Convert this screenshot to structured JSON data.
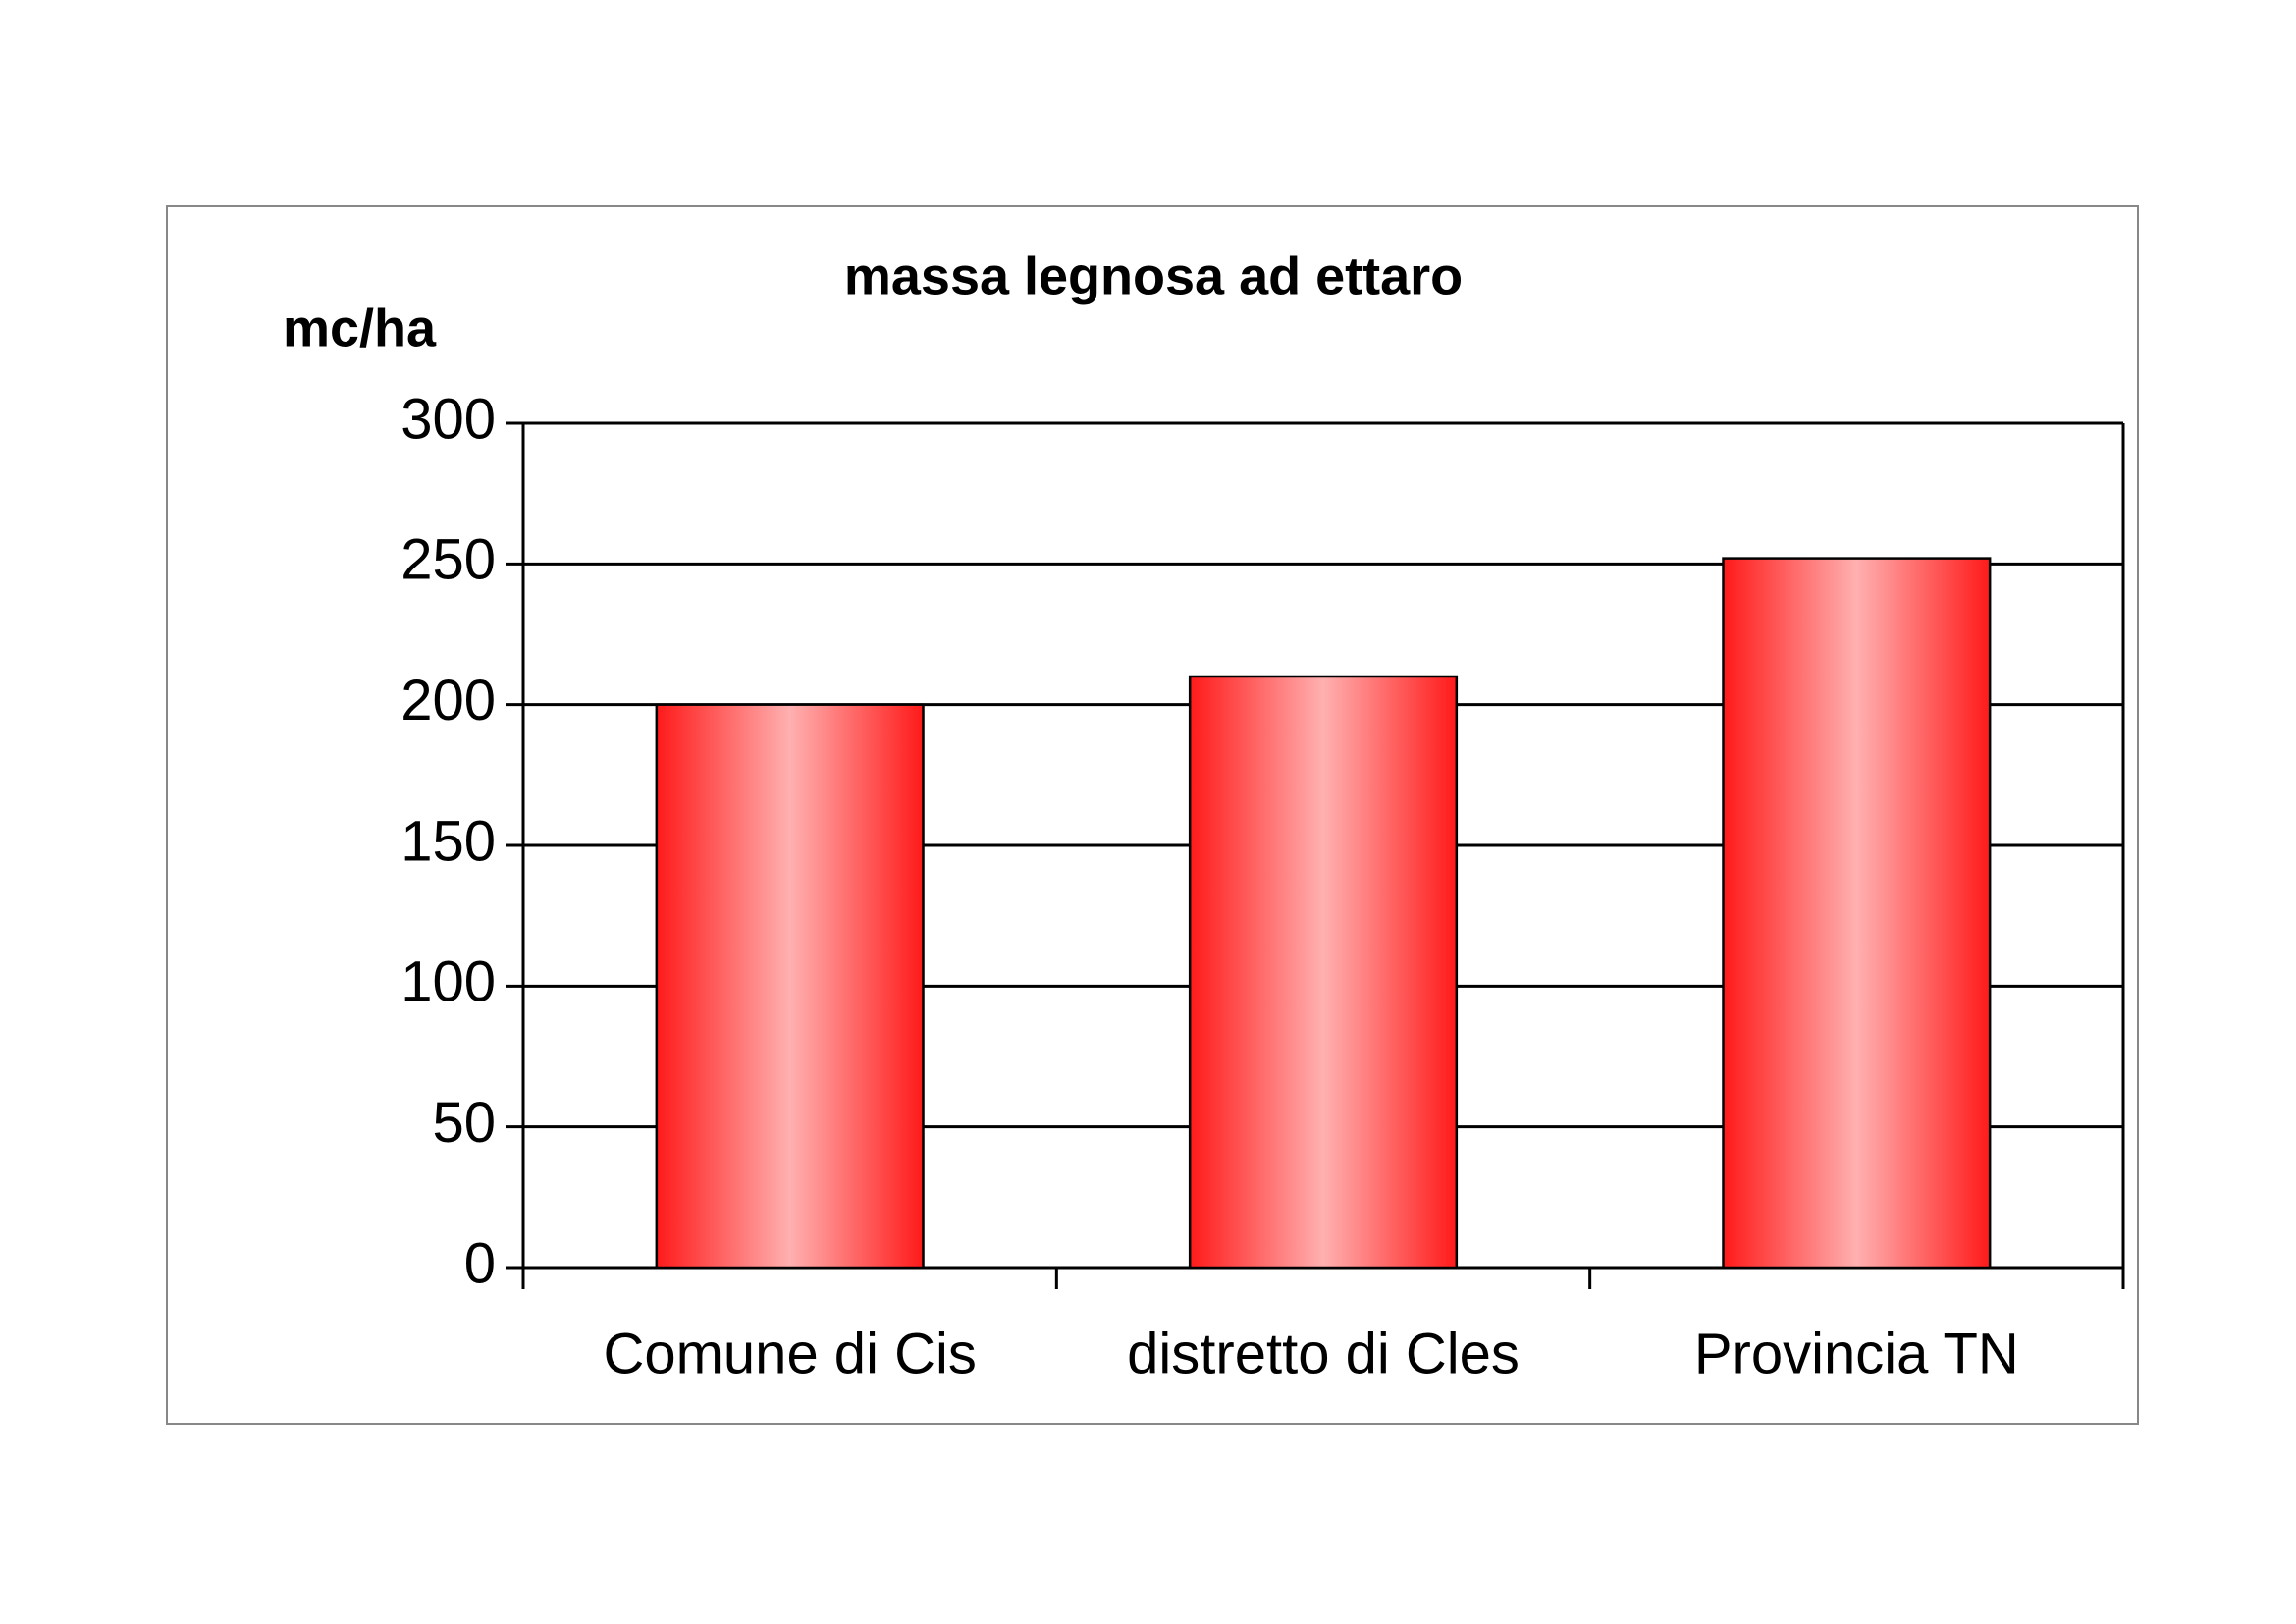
{
  "chart_data": {
    "type": "bar",
    "title": "massa legnosa ad ettaro",
    "y_label": "mc/ha",
    "categories": [
      "Comune di Cis",
      "distretto di Cles",
      "Provincia TN"
    ],
    "values": [
      200,
      210,
      252
    ],
    "color": "#ff1a1a",
    "ylim": [
      0,
      300
    ],
    "yticks": [
      0,
      50,
      100,
      150,
      200,
      250,
      300
    ],
    "grid": true
  }
}
